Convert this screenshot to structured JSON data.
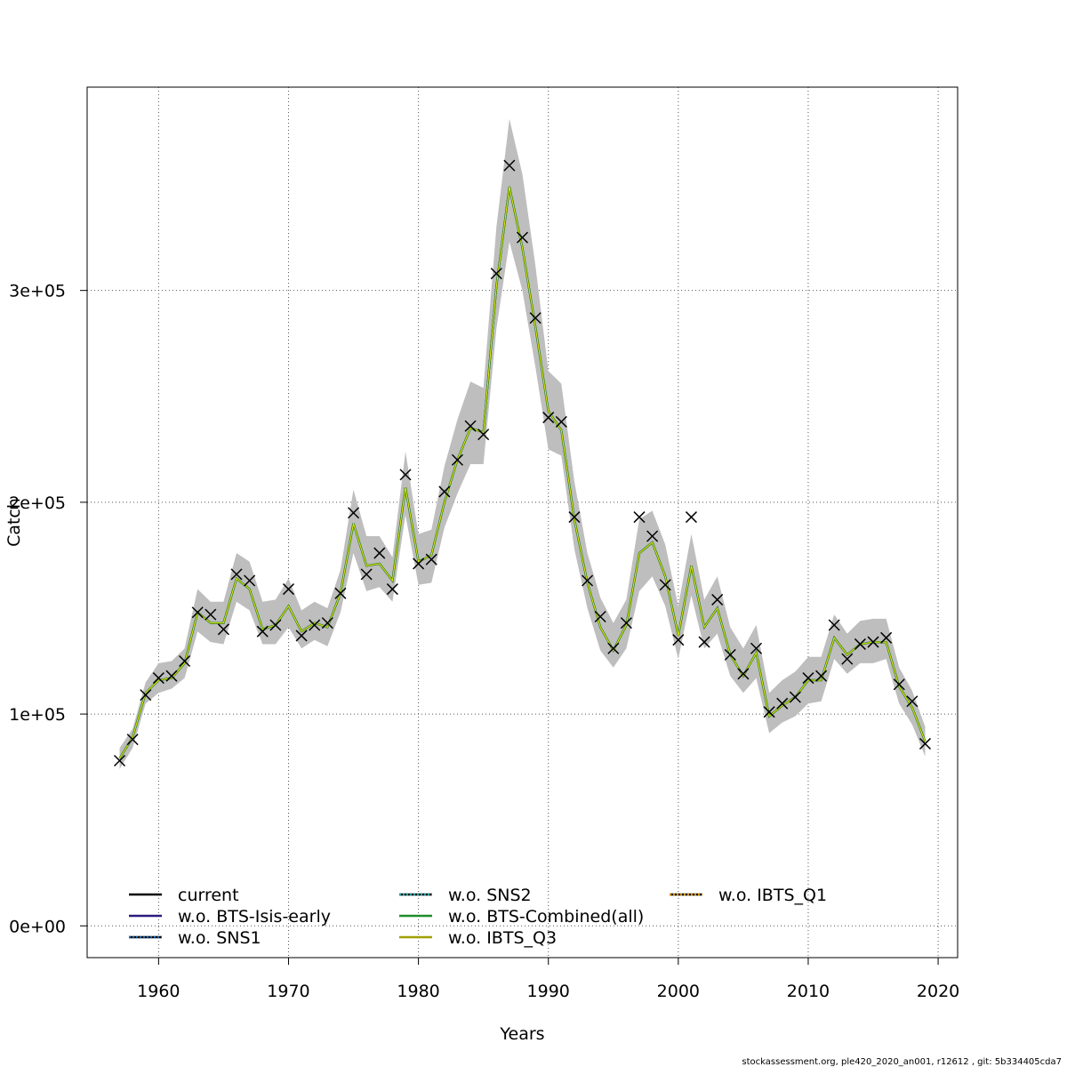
{
  "chart_data": {
    "type": "line",
    "xlabel": "Years",
    "ylabel": "Catch",
    "xlim": [
      1954.5,
      2021.5
    ],
    "ylim": [
      -15000,
      396000
    ],
    "x_ticks": [
      1960,
      1970,
      1980,
      1990,
      2000,
      2010,
      2020
    ],
    "x_tick_labels": [
      "1960",
      "1970",
      "1980",
      "1990",
      "2000",
      "2010",
      "2020"
    ],
    "y_ticks": [
      0,
      100000,
      200000,
      300000
    ],
    "y_tick_labels": [
      "0e+00",
      "1e+05",
      "2e+05",
      "3e+05"
    ],
    "grid": true,
    "legend_position": "bottom-left",
    "colors": {
      "band": "#bebebe",
      "current": "#000000",
      "w.o. BTS-Isis-early": "#2b1a80",
      "w.o. SNS1": "#1f5fa0",
      "w.o. SNS2": "#1fa0a0",
      "w.o. BTS-Combined(all)": "#1e8c2c",
      "w.o. IBTS_Q3": "#a0a000",
      "w.o. IBTS_Q1": "#d09000",
      "fit_line": "#2e8b2e",
      "fit_highlight": "#e6e600"
    },
    "years": [
      1957,
      1958,
      1959,
      1960,
      1961,
      1962,
      1963,
      1964,
      1965,
      1966,
      1967,
      1968,
      1969,
      1970,
      1971,
      1972,
      1973,
      1974,
      1975,
      1976,
      1977,
      1978,
      1979,
      1980,
      1981,
      1982,
      1983,
      1984,
      1985,
      1986,
      1987,
      1988,
      1989,
      1990,
      1991,
      1992,
      1993,
      1994,
      1995,
      1996,
      1997,
      1998,
      1999,
      2000,
      2001,
      2002,
      2003,
      2004,
      2005,
      2006,
      2007,
      2008,
      2009,
      2010,
      2011,
      2012,
      2013,
      2014,
      2015,
      2016,
      2017,
      2018,
      2019
    ],
    "observed": [
      78000,
      88000,
      109000,
      117000,
      118000,
      125000,
      148000,
      147000,
      140000,
      166000,
      163000,
      139000,
      142000,
      159000,
      137000,
      142000,
      143000,
      157000,
      195000,
      166000,
      176000,
      159000,
      213000,
      171000,
      173000,
      205000,
      220000,
      236000,
      232000,
      308000,
      359000,
      325000,
      287000,
      240000,
      238000,
      193000,
      163000,
      146000,
      131000,
      143000,
      193000,
      184000,
      161000,
      135000,
      193000,
      134000,
      154000,
      128000,
      119000,
      131000,
      101000,
      105000,
      108000,
      117000,
      118000,
      142000,
      126000,
      133000,
      134000,
      136000,
      114000,
      106000,
      86000
    ],
    "estimate": [
      79000,
      89000,
      110000,
      116000,
      117000,
      124000,
      148000,
      143000,
      143000,
      164000,
      159000,
      140000,
      142000,
      151000,
      139000,
      143000,
      141000,
      157000,
      190000,
      170000,
      171000,
      163000,
      207000,
      172000,
      175000,
      200000,
      220000,
      235000,
      233000,
      302000,
      349000,
      320000,
      283000,
      243000,
      234000,
      192000,
      162000,
      141000,
      130000,
      142000,
      176000,
      181000,
      165000,
      137000,
      170000,
      141000,
      150000,
      128000,
      118000,
      129000,
      99000,
      104000,
      108000,
      116000,
      116000,
      136000,
      128000,
      133000,
      134000,
      134000,
      113000,
      103000,
      87000
    ],
    "upper": [
      84000,
      93000,
      115000,
      124000,
      125000,
      131000,
      159000,
      153000,
      153000,
      176000,
      172000,
      153000,
      154000,
      164000,
      149000,
      153000,
      150000,
      168000,
      206000,
      184000,
      184000,
      174000,
      224000,
      185000,
      187000,
      217000,
      239000,
      257000,
      254000,
      330000,
      381000,
      355000,
      312000,
      262000,
      256000,
      210000,
      176000,
      155000,
      143000,
      154000,
      192000,
      196000,
      180000,
      151000,
      185000,
      154000,
      165000,
      141000,
      131000,
      142000,
      110000,
      116000,
      120000,
      127000,
      127000,
      147000,
      138000,
      144000,
      145000,
      145000,
      122000,
      111000,
      94000
    ],
    "lower": [
      74000,
      84000,
      105000,
      110000,
      112000,
      117000,
      139000,
      134000,
      133000,
      153000,
      149000,
      133000,
      133000,
      141000,
      131000,
      135000,
      132000,
      148000,
      176000,
      158000,
      160000,
      153000,
      194000,
      161000,
      162000,
      188000,
      204000,
      218000,
      218000,
      282000,
      323000,
      300000,
      264000,
      225000,
      222000,
      178000,
      150000,
      130000,
      122000,
      131000,
      158000,
      165000,
      151000,
      126000,
      156000,
      131000,
      138000,
      118000,
      110000,
      117000,
      91000,
      96000,
      99000,
      105000,
      106000,
      126000,
      119000,
      124000,
      124000,
      126000,
      105000,
      95000,
      80000
    ],
    "series": [
      {
        "name": "current",
        "style": "solid"
      },
      {
        "name": "w.o. BTS-Isis-early",
        "style": "solid"
      },
      {
        "name": "w.o. SNS1",
        "style": "dotted"
      },
      {
        "name": "w.o. SNS2",
        "style": "dotted"
      },
      {
        "name": "w.o. BTS-Combined(all)",
        "style": "solid"
      },
      {
        "name": "w.o. IBTS_Q3",
        "style": "solid"
      },
      {
        "name": "w.o. IBTS_Q1",
        "style": "dotted"
      }
    ]
  },
  "footer": {
    "text": "stockassessment.org, ple420_2020_an001, r12612 , git: 5b334405cda7"
  }
}
